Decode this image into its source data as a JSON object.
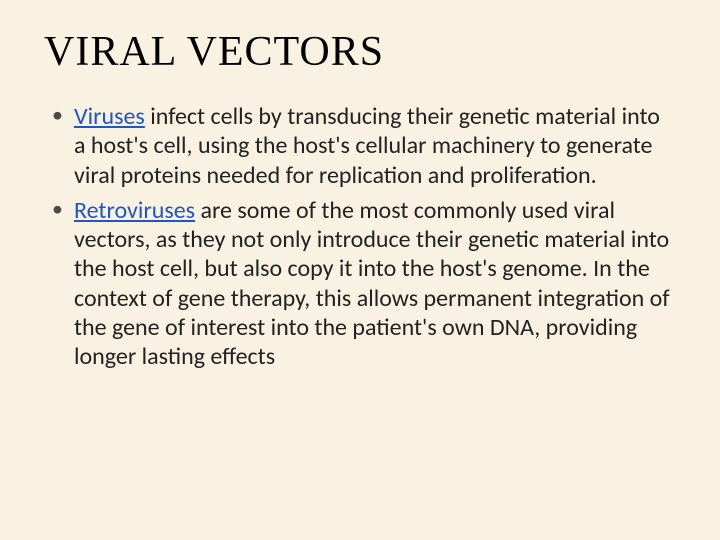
{
  "slide": {
    "title": "Viral Vectors",
    "background_color": "#f9f2e2",
    "title_color": "#000000",
    "title_fontsize": 42,
    "body_color": "#222222",
    "body_fontsize": 24,
    "link_color": "#1f56c4",
    "bullets": [
      {
        "link_text": "Viruses",
        "rest": " infect cells by transducing their genetic material into a host's cell, using the host's cellular machinery to generate viral proteins needed for replication and proliferation."
      },
      {
        "link_text": "Retroviruses",
        "rest": " are some of the most commonly used viral vectors, as they not only introduce their genetic material into the host cell, but also copy it into the host's genome. In the context of gene therapy, this allows permanent integration of the gene of interest into the patient's own DNA, providing longer lasting effects"
      }
    ]
  }
}
